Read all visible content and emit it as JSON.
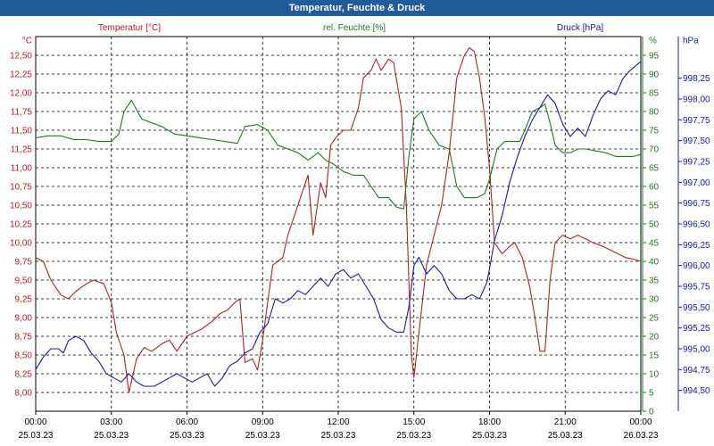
{
  "window": {
    "title": "Temperatur, Feuchte & Druck"
  },
  "colors": {
    "temperature": "#b22222",
    "humidity": "#1f7a1f",
    "pressure": "#1a1aa6",
    "titlebar": "#1f5c99",
    "grid": "#000000"
  },
  "chart_data": {
    "type": "line",
    "title": "Temperatur, Feuchte & Druck",
    "grid": true,
    "x_ticks": [
      {
        "time": "00:00",
        "date": "25.03.23"
      },
      {
        "time": "03:00",
        "date": "25.03.23"
      },
      {
        "time": "06:00",
        "date": "25.03.23"
      },
      {
        "time": "09:00",
        "date": "25.03.23"
      },
      {
        "time": "12:00",
        "date": "25.03.23"
      },
      {
        "time": "15:00",
        "date": "25.03.23"
      },
      {
        "time": "18:00",
        "date": "25.03.23"
      },
      {
        "time": "21:00",
        "date": "25.03.23"
      },
      {
        "time": "00:00",
        "date": "26.03.23"
      }
    ],
    "x_range_hours": [
      0,
      24
    ],
    "axes": {
      "temperature": {
        "label": "Temperatur [°C]",
        "unit": "°C",
        "range": [
          7.75,
          12.75
        ],
        "ticks": [
          "8,00",
          "8,25",
          "8,50",
          "8,75",
          "9,00",
          "9,25",
          "9,50",
          "9,75",
          "10,00",
          "10,25",
          "10,50",
          "10,75",
          "11,00",
          "11,25",
          "11,50",
          "11,75",
          "12,00",
          "12,25",
          "12,50"
        ]
      },
      "humidity": {
        "label": "rel. Feuchte [%]",
        "unit": "%",
        "range": [
          0,
          100
        ],
        "ticks": [
          "0",
          "5",
          "10",
          "15",
          "20",
          "25",
          "30",
          "35",
          "40",
          "45",
          "50",
          "55",
          "60",
          "65",
          "70",
          "75",
          "80",
          "85",
          "90",
          "95"
        ]
      },
      "pressure": {
        "label": "Druck [hPa]",
        "unit": "hPa",
        "range": [
          994.25,
          998.75
        ],
        "ticks": [
          "994,50",
          "994,75",
          "995,00",
          "995,25",
          "995,50",
          "995,75",
          "996,00",
          "996,25",
          "996,50",
          "996,75",
          "997,00",
          "997,25",
          "997,50",
          "997,75",
          "998,00",
          "998,25"
        ]
      }
    },
    "series": [
      {
        "name": "Temperatur [°C]",
        "axis": "temperature",
        "points": [
          [
            0,
            9.8
          ],
          [
            0.3,
            9.75
          ],
          [
            0.6,
            9.5
          ],
          [
            1.0,
            9.3
          ],
          [
            1.3,
            9.25
          ],
          [
            1.6,
            9.35
          ],
          [
            2.0,
            9.45
          ],
          [
            2.3,
            9.5
          ],
          [
            2.7,
            9.45
          ],
          [
            3.0,
            9.2
          ],
          [
            3.2,
            8.8
          ],
          [
            3.5,
            8.5
          ],
          [
            3.7,
            8.0
          ],
          [
            4.0,
            8.45
          ],
          [
            4.3,
            8.6
          ],
          [
            4.6,
            8.55
          ],
          [
            5.0,
            8.65
          ],
          [
            5.3,
            8.7
          ],
          [
            5.6,
            8.55
          ],
          [
            6.0,
            8.75
          ],
          [
            6.3,
            8.8
          ],
          [
            6.6,
            8.85
          ],
          [
            7.0,
            8.95
          ],
          [
            7.3,
            9.05
          ],
          [
            7.6,
            9.1
          ],
          [
            7.9,
            9.2
          ],
          [
            8.1,
            9.25
          ],
          [
            8.3,
            8.4
          ],
          [
            8.6,
            8.45
          ],
          [
            8.8,
            8.3
          ],
          [
            9.0,
            8.7
          ],
          [
            9.2,
            9.2
          ],
          [
            9.4,
            9.7
          ],
          [
            9.6,
            9.75
          ],
          [
            9.8,
            9.8
          ],
          [
            10.0,
            10.1
          ],
          [
            10.3,
            10.4
          ],
          [
            10.5,
            10.6
          ],
          [
            10.8,
            10.9
          ],
          [
            11.0,
            10.1
          ],
          [
            11.3,
            10.8
          ],
          [
            11.5,
            10.6
          ],
          [
            11.7,
            11.3
          ],
          [
            11.9,
            11.4
          ],
          [
            12.2,
            11.5
          ],
          [
            12.5,
            11.5
          ],
          [
            12.8,
            11.8
          ],
          [
            13.0,
            12.2
          ],
          [
            13.3,
            12.3
          ],
          [
            13.5,
            12.45
          ],
          [
            13.7,
            12.3
          ],
          [
            14.0,
            12.45
          ],
          [
            14.2,
            12.4
          ],
          [
            14.5,
            11.8
          ],
          [
            14.7,
            10.5
          ],
          [
            14.9,
            8.5
          ],
          [
            15.0,
            8.2
          ],
          [
            15.2,
            8.8
          ],
          [
            15.5,
            9.7
          ],
          [
            15.8,
            10.1
          ],
          [
            16.1,
            10.5
          ],
          [
            16.4,
            11.2
          ],
          [
            16.7,
            12.2
          ],
          [
            17.0,
            12.5
          ],
          [
            17.2,
            12.6
          ],
          [
            17.4,
            12.55
          ],
          [
            17.6,
            12.2
          ],
          [
            17.8,
            11.7
          ],
          [
            18.0,
            11.0
          ],
          [
            18.2,
            10.0
          ],
          [
            18.5,
            9.85
          ],
          [
            18.8,
            9.95
          ],
          [
            19.0,
            10.0
          ],
          [
            19.3,
            9.8
          ],
          [
            19.6,
            9.4
          ],
          [
            19.8,
            9.0
          ],
          [
            20.0,
            8.55
          ],
          [
            20.2,
            8.55
          ],
          [
            20.4,
            9.5
          ],
          [
            20.6,
            10.0
          ],
          [
            20.9,
            10.1
          ],
          [
            21.2,
            10.05
          ],
          [
            21.5,
            10.1
          ],
          [
            21.8,
            10.05
          ],
          [
            22.1,
            10.0
          ],
          [
            22.5,
            9.95
          ],
          [
            22.8,
            9.9
          ],
          [
            23.1,
            9.85
          ],
          [
            23.4,
            9.8
          ],
          [
            23.7,
            9.78
          ],
          [
            24.0,
            9.75
          ]
        ]
      },
      {
        "name": "rel. Feuchte [%]",
        "axis": "humidity",
        "points": [
          [
            0,
            73
          ],
          [
            0.5,
            73.5
          ],
          [
            1.0,
            73.5
          ],
          [
            1.5,
            72.5
          ],
          [
            2.0,
            72.5
          ],
          [
            2.5,
            72
          ],
          [
            3.0,
            72
          ],
          [
            3.3,
            74
          ],
          [
            3.5,
            80
          ],
          [
            3.8,
            83
          ],
          [
            4.2,
            78
          ],
          [
            4.6,
            77
          ],
          [
            5.0,
            76
          ],
          [
            5.5,
            74
          ],
          [
            6.0,
            73.5
          ],
          [
            6.5,
            73
          ],
          [
            7.0,
            72.5
          ],
          [
            7.5,
            72
          ],
          [
            8.0,
            71.5
          ],
          [
            8.3,
            76
          ],
          [
            8.8,
            76.5
          ],
          [
            9.2,
            75
          ],
          [
            9.6,
            71
          ],
          [
            10.0,
            70
          ],
          [
            10.4,
            69
          ],
          [
            10.8,
            67
          ],
          [
            11.2,
            69
          ],
          [
            11.5,
            67
          ],
          [
            11.8,
            66
          ],
          [
            12.2,
            64
          ],
          [
            12.6,
            63
          ],
          [
            13.0,
            63
          ],
          [
            13.3,
            60
          ],
          [
            13.6,
            57
          ],
          [
            14.0,
            57
          ],
          [
            14.3,
            54.5
          ],
          [
            14.6,
            54
          ],
          [
            14.8,
            68
          ],
          [
            15.0,
            78
          ],
          [
            15.3,
            80
          ],
          [
            15.6,
            75
          ],
          [
            16.0,
            71
          ],
          [
            16.4,
            70
          ],
          [
            16.7,
            60
          ],
          [
            17.0,
            57
          ],
          [
            17.5,
            57
          ],
          [
            17.8,
            58
          ],
          [
            18.0,
            62
          ],
          [
            18.3,
            70
          ],
          [
            18.6,
            72
          ],
          [
            18.9,
            72
          ],
          [
            19.2,
            72
          ],
          [
            19.4,
            75
          ],
          [
            19.7,
            80
          ],
          [
            20.0,
            81
          ],
          [
            20.2,
            82
          ],
          [
            20.4,
            77
          ],
          [
            20.6,
            71
          ],
          [
            20.9,
            69
          ],
          [
            21.2,
            69
          ],
          [
            21.5,
            70
          ],
          [
            21.8,
            70
          ],
          [
            22.2,
            69.5
          ],
          [
            22.6,
            69
          ],
          [
            23.0,
            68
          ],
          [
            23.4,
            68
          ],
          [
            23.7,
            68
          ],
          [
            24.0,
            68.5
          ]
        ]
      },
      {
        "name": "Druck [hPa]",
        "axis": "pressure",
        "points": [
          [
            0,
            994.75
          ],
          [
            0.3,
            994.9
          ],
          [
            0.6,
            995.0
          ],
          [
            0.9,
            995.0
          ],
          [
            1.1,
            994.95
          ],
          [
            1.3,
            995.1
          ],
          [
            1.6,
            995.15
          ],
          [
            1.9,
            995.1
          ],
          [
            2.2,
            994.95
          ],
          [
            2.5,
            994.85
          ],
          [
            2.8,
            994.7
          ],
          [
            3.1,
            994.65
          ],
          [
            3.4,
            994.6
          ],
          [
            3.7,
            994.7
          ],
          [
            4.0,
            994.6
          ],
          [
            4.3,
            994.55
          ],
          [
            4.7,
            994.55
          ],
          [
            5.0,
            994.6
          ],
          [
            5.3,
            994.65
          ],
          [
            5.6,
            994.7
          ],
          [
            5.9,
            994.65
          ],
          [
            6.2,
            994.6
          ],
          [
            6.5,
            994.65
          ],
          [
            6.8,
            994.7
          ],
          [
            7.1,
            994.55
          ],
          [
            7.4,
            994.65
          ],
          [
            7.7,
            994.8
          ],
          [
            8.0,
            994.85
          ],
          [
            8.3,
            994.95
          ],
          [
            8.6,
            995.0
          ],
          [
            8.9,
            995.2
          ],
          [
            9.2,
            995.3
          ],
          [
            9.5,
            995.6
          ],
          [
            9.8,
            995.55
          ],
          [
            10.1,
            995.6
          ],
          [
            10.4,
            995.7
          ],
          [
            10.7,
            995.65
          ],
          [
            11.0,
            995.75
          ],
          [
            11.3,
            995.85
          ],
          [
            11.6,
            995.75
          ],
          [
            11.9,
            995.9
          ],
          [
            12.2,
            995.95
          ],
          [
            12.5,
            995.85
          ],
          [
            12.8,
            995.9
          ],
          [
            13.1,
            995.75
          ],
          [
            13.4,
            995.6
          ],
          [
            13.7,
            995.35
          ],
          [
            14.0,
            995.25
          ],
          [
            14.3,
            995.2
          ],
          [
            14.6,
            995.2
          ],
          [
            14.8,
            995.5
          ],
          [
            15.0,
            996.0
          ],
          [
            15.2,
            996.1
          ],
          [
            15.5,
            995.9
          ],
          [
            15.8,
            996.0
          ],
          [
            16.1,
            995.9
          ],
          [
            16.4,
            995.7
          ],
          [
            16.7,
            995.6
          ],
          [
            17.0,
            995.6
          ],
          [
            17.3,
            995.65
          ],
          [
            17.6,
            995.6
          ],
          [
            17.9,
            995.8
          ],
          [
            18.2,
            996.3
          ],
          [
            18.5,
            996.6
          ],
          [
            18.8,
            997.0
          ],
          [
            19.1,
            997.3
          ],
          [
            19.4,
            997.55
          ],
          [
            19.7,
            997.75
          ],
          [
            20.0,
            997.9
          ],
          [
            20.3,
            998.05
          ],
          [
            20.6,
            997.95
          ],
          [
            20.9,
            997.7
          ],
          [
            21.2,
            997.55
          ],
          [
            21.5,
            997.65
          ],
          [
            21.8,
            997.55
          ],
          [
            22.1,
            997.8
          ],
          [
            22.4,
            998.0
          ],
          [
            22.7,
            998.1
          ],
          [
            23.0,
            998.05
          ],
          [
            23.3,
            998.25
          ],
          [
            23.6,
            998.35
          ],
          [
            24.0,
            998.45
          ]
        ]
      }
    ]
  }
}
